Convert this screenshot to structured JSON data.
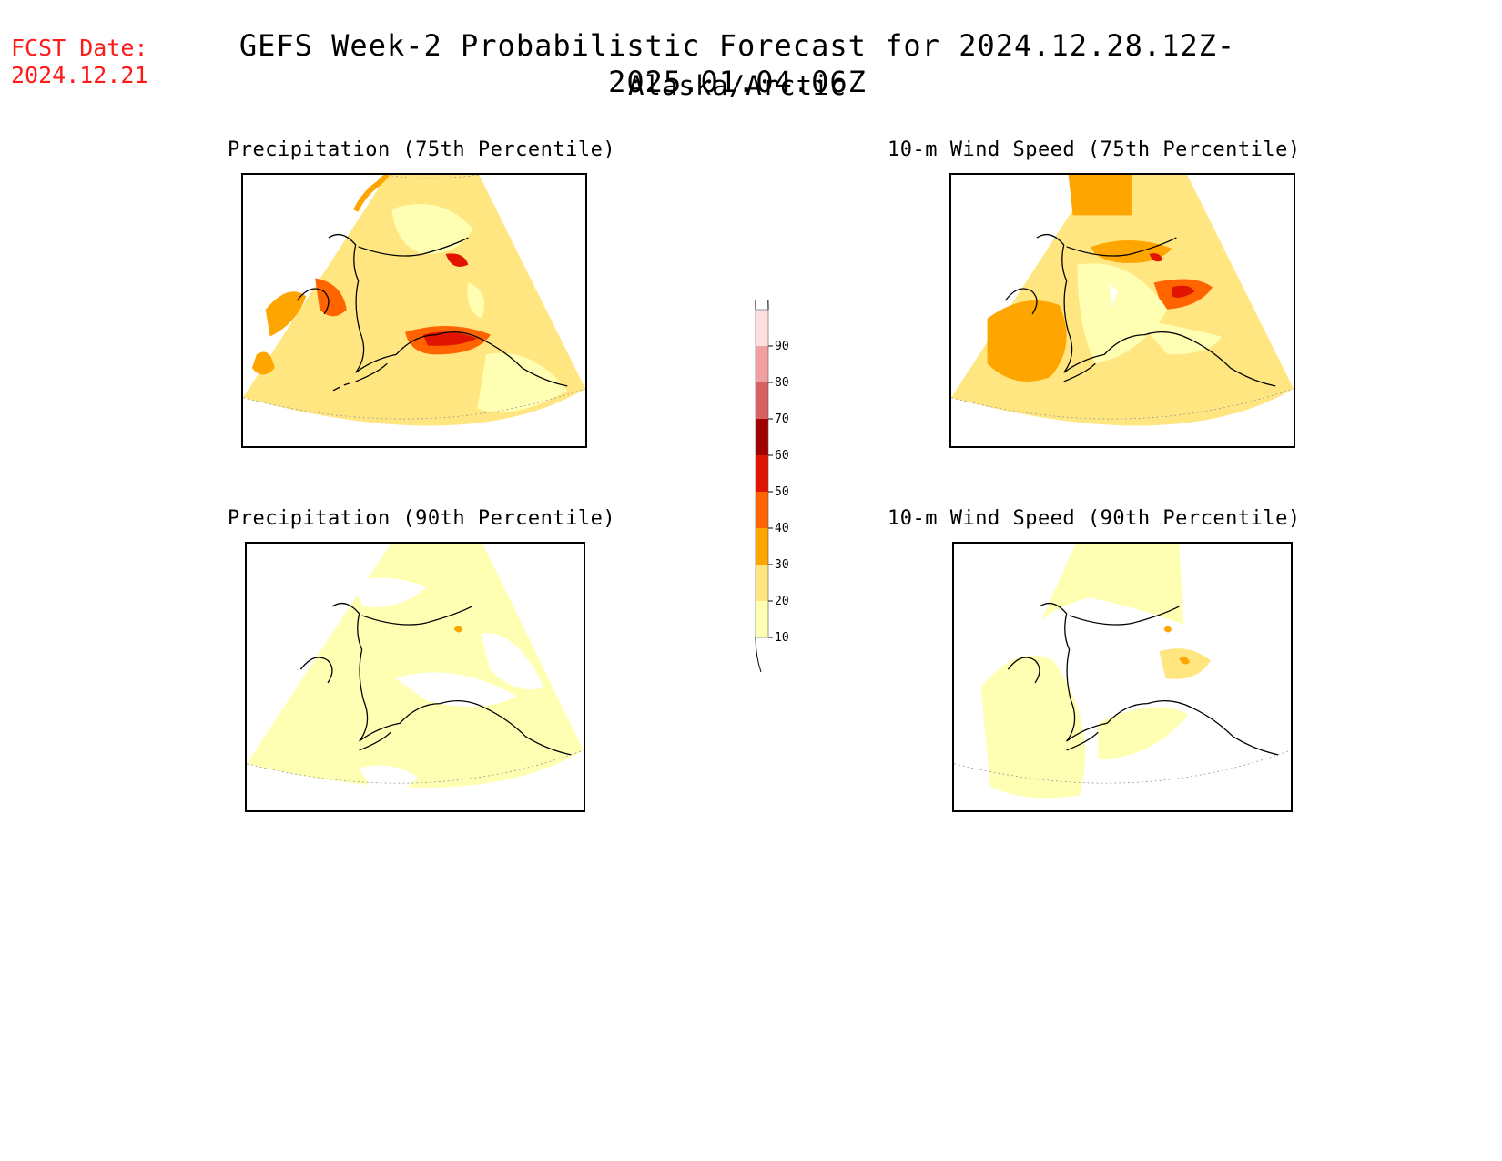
{
  "header": {
    "fcst_label": "FCST Date:",
    "fcst_date": "2024.12.21",
    "title": "GEFS Week-2 Probabilistic Forecast for 2024.12.28.12Z-2025.01.04.06Z",
    "subtitle": "Alaska/Arctic"
  },
  "panels": [
    {
      "id": "precip75",
      "title": "Precipitation (75th Percentile)"
    },
    {
      "id": "wind75",
      "title": "10-m Wind Speed (75th Percentile)"
    },
    {
      "id": "precip90",
      "title": "Precipitation (90th Percentile)"
    },
    {
      "id": "wind90",
      "title": "10-m Wind Speed (90th Percentile)"
    }
  ],
  "colorbar": {
    "levels": [
      "10",
      "20",
      "30",
      "40",
      "50",
      "60",
      "70",
      "80",
      "90"
    ],
    "colors": [
      "#ffffb3",
      "#ffe680",
      "#ffa500",
      "#ff6400",
      "#e01400",
      "#a00000",
      "#d86060",
      "#f0a0a0",
      "#ffe0e0"
    ]
  }
}
